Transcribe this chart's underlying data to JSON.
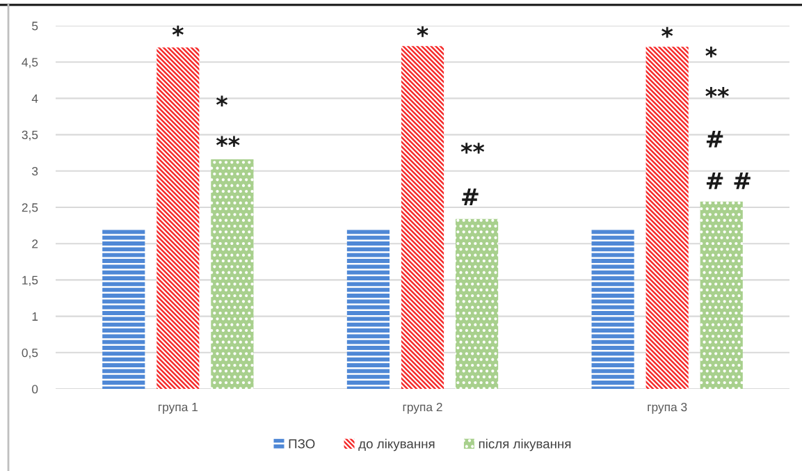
{
  "chart_data": {
    "type": "bar",
    "categories": [
      "група 1",
      "група 2",
      "група 3"
    ],
    "series": [
      {
        "name": "ПЗО",
        "color": "#4f88d6",
        "values": [
          2.2,
          2.2,
          2.2
        ]
      },
      {
        "name": "до лікування",
        "color": "#f52a2a",
        "values": [
          4.7,
          4.72,
          4.71
        ]
      },
      {
        "name": "після лікування",
        "color": "#a8d08d",
        "values": [
          3.16,
          2.34,
          2.58
        ]
      }
    ],
    "ylim": [
      0,
      5
    ],
    "yticks": [
      0,
      {
        "value": 0.5,
        "label": "0,5"
      },
      1,
      {
        "value": 1.5,
        "label": "1,5"
      },
      2,
      {
        "value": 2.5,
        "label": "2,5"
      },
      3,
      {
        "value": 3.5,
        "label": "3,5"
      },
      4,
      {
        "value": 4.5,
        "label": "4,5"
      },
      5
    ],
    "grid": "y",
    "legend": "bottom",
    "annotations": [
      "*",
      "*",
      "**",
      "*",
      "**",
      "#",
      "*",
      "*",
      "**",
      "#",
      "# #"
    ]
  }
}
